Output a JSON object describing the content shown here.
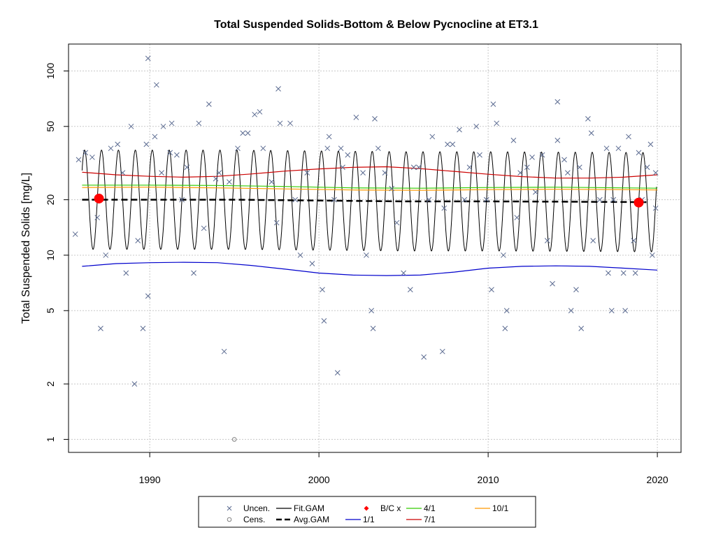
{
  "chart_data": {
    "type": "scatter",
    "title": "Total Suspended Solids-Bottom & Below Pycnocline at ET3.1",
    "xlabel": "",
    "ylabel": "Total Suspended Solids [mg/L]",
    "xlim": [
      1985.2,
      2021.4
    ],
    "ylim": [
      0.85,
      140
    ],
    "y_scale": "log",
    "grid": true,
    "x_ticks": [
      "1990",
      "2000",
      "2010",
      "2020"
    ],
    "y_ticks": [
      "1",
      "2",
      "5",
      "10",
      "20",
      "50",
      "100"
    ],
    "legend_position": "bottom",
    "legend": [
      {
        "label": "Uncen.",
        "symbol": "x",
        "color": "#5a6a90"
      },
      {
        "label": "Cens.",
        "symbol": "circle-open",
        "color": "#808080"
      },
      {
        "label": "Fit.GAM",
        "symbol": "line",
        "color": "#000000"
      },
      {
        "label": "Avg.GAM",
        "symbol": "dashed-line",
        "color": "#000000"
      },
      {
        "label": "B/C x",
        "symbol": "diamond",
        "color": "#ff0000"
      },
      {
        "label": "1/1",
        "symbol": "line",
        "color": "#0000cc"
      },
      {
        "label": "4/1",
        "symbol": "line",
        "color": "#33cc00"
      },
      {
        "label": "7/1",
        "symbol": "line",
        "color": "#cc0000"
      },
      {
        "label": "10/1",
        "symbol": "line",
        "color": "#ff9900"
      }
    ],
    "colors": {
      "uncensored": "#5a6a90",
      "censored": "#808080",
      "fit": "#000000",
      "avg": "#000000",
      "bc": "#ff0000",
      "jan1": "#0000cc",
      "apr1": "#33cc00",
      "jul1": "#cc0000",
      "oct1": "#ff9900"
    },
    "series": [
      {
        "name": "Uncen.",
        "points": [
          [
            1985.6,
            13
          ],
          [
            1985.8,
            33
          ],
          [
            1986.2,
            36
          ],
          [
            1986.6,
            34
          ],
          [
            1986.9,
            16
          ],
          [
            1987.1,
            4
          ],
          [
            1987.4,
            10
          ],
          [
            1987.7,
            38
          ],
          [
            1988.1,
            40
          ],
          [
            1988.4,
            28
          ],
          [
            1988.6,
            8
          ],
          [
            1988.9,
            50
          ],
          [
            1989.1,
            2
          ],
          [
            1989.3,
            12
          ],
          [
            1989.6,
            4
          ],
          [
            1989.8,
            40
          ],
          [
            1989.9,
            117
          ],
          [
            1989.9,
            6
          ],
          [
            1990.3,
            44
          ],
          [
            1990.4,
            84
          ],
          [
            1990.7,
            28
          ],
          [
            1990.8,
            50
          ],
          [
            1991.2,
            36
          ],
          [
            1991.3,
            52
          ],
          [
            1991.6,
            35
          ],
          [
            1991.9,
            20
          ],
          [
            1992.2,
            30
          ],
          [
            1992.6,
            8
          ],
          [
            1992.9,
            52
          ],
          [
            1993.2,
            14
          ],
          [
            1993.5,
            66
          ],
          [
            1993.9,
            26
          ],
          [
            1994.1,
            28
          ],
          [
            1994.4,
            3
          ],
          [
            1994.7,
            25
          ],
          [
            1995.2,
            38
          ],
          [
            1995.5,
            46
          ],
          [
            1995.8,
            46
          ],
          [
            1996.2,
            58
          ],
          [
            1996.5,
            60
          ],
          [
            1996.7,
            38
          ],
          [
            1997.2,
            25
          ],
          [
            1997.5,
            15
          ],
          [
            1997.6,
            80
          ],
          [
            1997.7,
            52
          ],
          [
            1998.3,
            52
          ],
          [
            1998.6,
            20
          ],
          [
            1998.9,
            10
          ],
          [
            1999.3,
            28
          ],
          [
            1999.6,
            9
          ],
          [
            2000.2,
            6.5
          ],
          [
            2000.3,
            4.4
          ],
          [
            2000.5,
            38
          ],
          [
            2000.6,
            44
          ],
          [
            2000.9,
            20
          ],
          [
            2001.1,
            2.3
          ],
          [
            2001.3,
            38
          ],
          [
            2001.4,
            30
          ],
          [
            2001.7,
            35
          ],
          [
            2002.2,
            56
          ],
          [
            2002.6,
            28
          ],
          [
            2002.8,
            10
          ],
          [
            2003.1,
            5
          ],
          [
            2003.2,
            4
          ],
          [
            2003.3,
            55
          ],
          [
            2003.5,
            38
          ],
          [
            2003.9,
            28
          ],
          [
            2004.3,
            23
          ],
          [
            2004.6,
            15
          ],
          [
            2005.0,
            8
          ],
          [
            2005.4,
            6.5
          ],
          [
            2005.6,
            30
          ],
          [
            2005.9,
            30
          ],
          [
            2006.2,
            2.8
          ],
          [
            2006.5,
            20
          ],
          [
            2006.7,
            44
          ],
          [
            2007.3,
            3
          ],
          [
            2007.4,
            18
          ],
          [
            2007.6,
            40
          ],
          [
            2007.9,
            40
          ],
          [
            2008.3,
            48
          ],
          [
            2008.6,
            20
          ],
          [
            2008.9,
            30
          ],
          [
            2009.3,
            50
          ],
          [
            2009.5,
            35
          ],
          [
            2009.9,
            20
          ],
          [
            2010.2,
            6.5
          ],
          [
            2010.3,
            66
          ],
          [
            2010.5,
            52
          ],
          [
            2010.9,
            10
          ],
          [
            2011.0,
            4
          ],
          [
            2011.1,
            5
          ],
          [
            2011.5,
            42
          ],
          [
            2011.7,
            16
          ],
          [
            2011.9,
            28
          ],
          [
            2012.3,
            30
          ],
          [
            2012.6,
            34
          ],
          [
            2012.8,
            22
          ],
          [
            2013.2,
            35
          ],
          [
            2013.5,
            12
          ],
          [
            2013.8,
            7
          ],
          [
            2014.1,
            68
          ],
          [
            2014.1,
            42
          ],
          [
            2014.5,
            33
          ],
          [
            2014.7,
            28
          ],
          [
            2014.9,
            5
          ],
          [
            2015.2,
            6.5
          ],
          [
            2015.4,
            30
          ],
          [
            2015.5,
            4
          ],
          [
            2015.9,
            55
          ],
          [
            2016.1,
            46
          ],
          [
            2016.2,
            12
          ],
          [
            2016.6,
            20
          ],
          [
            2017.0,
            38
          ],
          [
            2017.1,
            8
          ],
          [
            2017.3,
            5
          ],
          [
            2017.4,
            20
          ],
          [
            2017.7,
            38
          ],
          [
            2018.0,
            8
          ],
          [
            2018.1,
            5
          ],
          [
            2018.3,
            44
          ],
          [
            2018.6,
            12
          ],
          [
            2018.7,
            8
          ],
          [
            2018.9,
            36
          ],
          [
            2019.1,
            20
          ],
          [
            2019.4,
            30
          ],
          [
            2019.6,
            40
          ],
          [
            2019.7,
            10
          ],
          [
            2019.9,
            28
          ],
          [
            2019.9,
            18
          ]
        ]
      },
      {
        "name": "Cens.",
        "points": [
          [
            1995.0,
            1.0
          ]
        ]
      },
      {
        "name": "Fit.GAM",
        "model": {
          "amplitude": 0.62,
          "peak_phase": 0.15
        }
      },
      {
        "name": "Avg.GAM",
        "points": [
          [
            1986.0,
            20
          ],
          [
            1990,
            20
          ],
          [
            1995,
            20
          ],
          [
            2000,
            19.8
          ],
          [
            2005,
            19.6
          ],
          [
            2010,
            19.6
          ],
          [
            2015,
            19.5
          ],
          [
            2019.5,
            19.4
          ]
        ]
      },
      {
        "name": "B/C x",
        "points": [
          [
            1987.0,
            20.3
          ],
          [
            2018.9,
            19.3
          ]
        ]
      },
      {
        "name": "1/1",
        "points": [
          [
            1986,
            8.7
          ],
          [
            1988,
            9.0
          ],
          [
            1990,
            9.1
          ],
          [
            1992,
            9.15
          ],
          [
            1994,
            9.1
          ],
          [
            1996,
            8.8
          ],
          [
            1998,
            8.4
          ],
          [
            2000,
            8.0
          ],
          [
            2002,
            7.8
          ],
          [
            2004,
            7.75
          ],
          [
            2006,
            7.8
          ],
          [
            2008,
            8.1
          ],
          [
            2010,
            8.5
          ],
          [
            2012,
            8.7
          ],
          [
            2014,
            8.75
          ],
          [
            2016,
            8.7
          ],
          [
            2018,
            8.5
          ],
          [
            2020,
            8.3
          ]
        ]
      },
      {
        "name": "4/1",
        "points": [
          [
            1986,
            24.0
          ],
          [
            1990,
            24.0
          ],
          [
            1994,
            23.9
          ],
          [
            1998,
            23.6
          ],
          [
            2002,
            23.2
          ],
          [
            2006,
            23.1
          ],
          [
            2010,
            23.3
          ],
          [
            2014,
            23.4
          ],
          [
            2018,
            23.2
          ],
          [
            2020,
            23.1
          ]
        ]
      },
      {
        "name": "7/1",
        "points": [
          [
            1986,
            28.2
          ],
          [
            1988,
            27.3
          ],
          [
            1990,
            26.8
          ],
          [
            1992,
            26.5
          ],
          [
            1994,
            26.8
          ],
          [
            1996,
            27.6
          ],
          [
            1998,
            28.6
          ],
          [
            2000,
            29.4
          ],
          [
            2002,
            30.0
          ],
          [
            2004,
            30.2
          ],
          [
            2006,
            29.5
          ],
          [
            2008,
            28.5
          ],
          [
            2010,
            27.5
          ],
          [
            2012,
            26.7
          ],
          [
            2014,
            26.2
          ],
          [
            2016,
            26.2
          ],
          [
            2018,
            26.5
          ],
          [
            2020,
            27.3
          ]
        ]
      },
      {
        "name": "10/1",
        "points": [
          [
            1986,
            23.3
          ],
          [
            1990,
            23.4
          ],
          [
            1994,
            23.2
          ],
          [
            1998,
            22.9
          ],
          [
            2002,
            22.6
          ],
          [
            2006,
            22.5
          ],
          [
            2010,
            22.7
          ],
          [
            2014,
            22.8
          ],
          [
            2018,
            22.7
          ],
          [
            2020,
            22.6
          ]
        ]
      }
    ]
  }
}
